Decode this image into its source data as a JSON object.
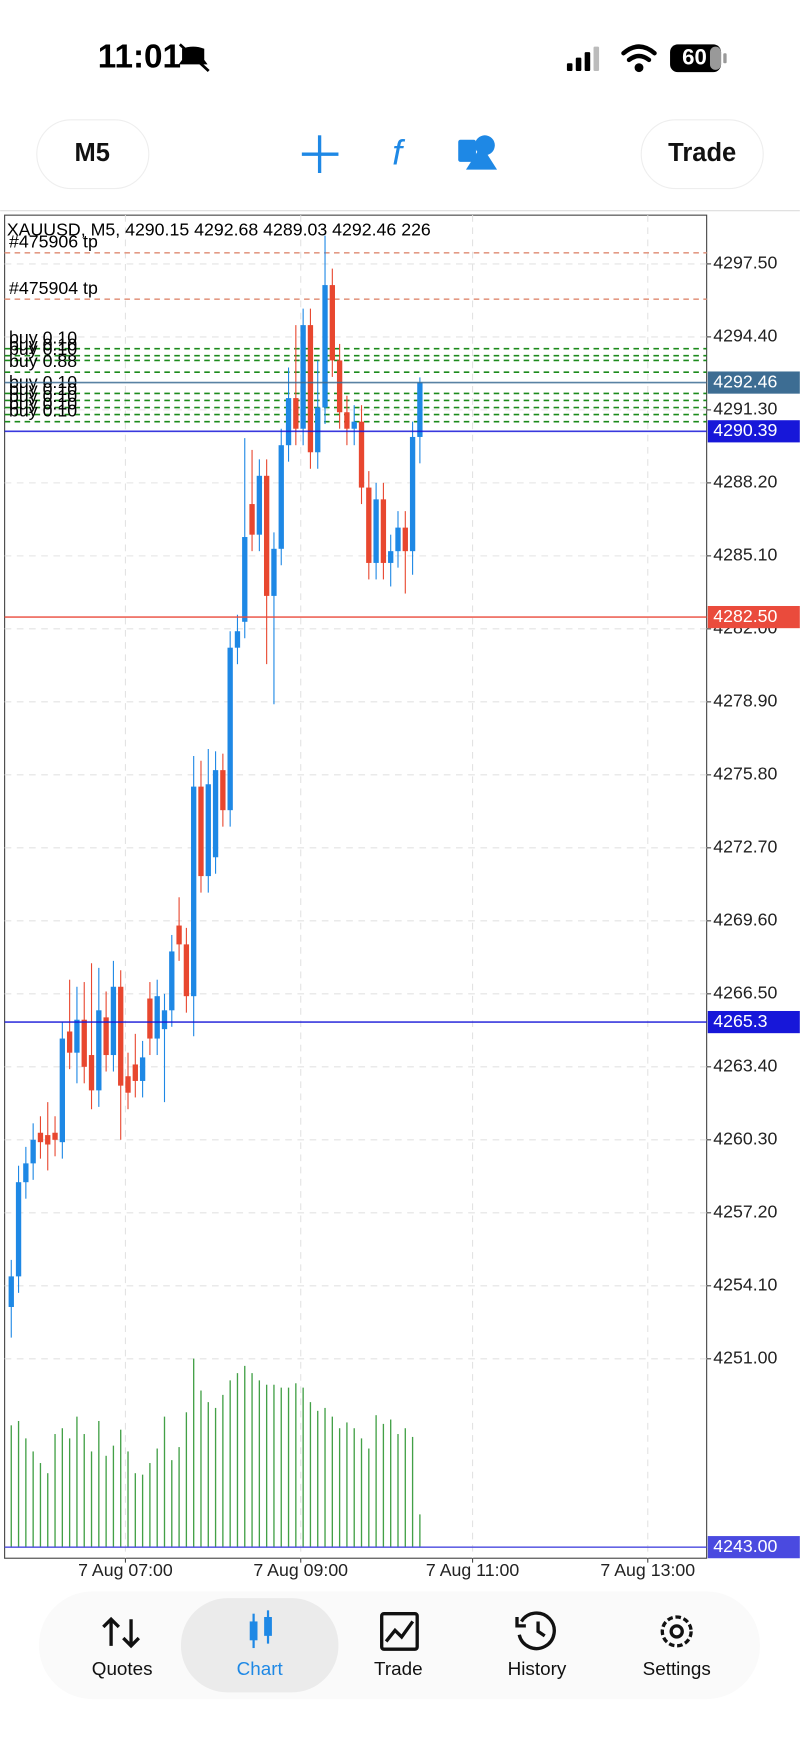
{
  "status_bar": {
    "time": "11:01",
    "battery": "60"
  },
  "toolbar": {
    "timeframe": "M5",
    "trade": "Trade"
  },
  "chart_data": {
    "type": "candlestick",
    "title": "XAUUSD, M5, 4290.15 4292.68 4289.03 4292.46 226",
    "categories": [
      null,
      null,
      null,
      null,
      null,
      null,
      null,
      null,
      null,
      null,
      null,
      null,
      null,
      null,
      null,
      null,
      null,
      null,
      null,
      null,
      null,
      null,
      null,
      null,
      null,
      null,
      null,
      null,
      null,
      null,
      null,
      null,
      null,
      null,
      null,
      null,
      null,
      null,
      null,
      null,
      null,
      null,
      null,
      null,
      null,
      null,
      null,
      null,
      null,
      null,
      null,
      null,
      null,
      null,
      null,
      null,
      null
    ],
    "open": [
      4253.2,
      4254.5,
      4258.5,
      4259.3,
      4260.6,
      4260.5,
      4260.6,
      4260.2,
      4264.9,
      4264.0,
      4265.4,
      4263.9,
      4262.4,
      4265.5,
      4263.9,
      4266.8,
      4263.0,
      4263.5,
      4262.8,
      4266.3,
      4264.6,
      4265.0,
      4265.8,
      4269.4,
      4268.6,
      4266.4,
      4275.3,
      4271.5,
      4272.3,
      4276.0,
      4274.3,
      4281.2,
      4282.3,
      4287.3,
      4286.0,
      4288.5,
      4283.4,
      4285.4,
      4289.8,
      4291.8,
      4290.5,
      4294.9,
      4289.5,
      4291.4,
      4296.6,
      4293.4,
      4291.2,
      4290.5,
      4290.8,
      4288.0,
      4284.8,
      4287.5,
      4284.8,
      4285.3,
      4286.3,
      4285.3,
      4290.15
    ],
    "high": [
      4255.2,
      4259.2,
      4260.0,
      4261.0,
      4261.3,
      4261.9,
      4261.3,
      4265.3,
      4267.1,
      4266.8,
      4267.0,
      4267.8,
      4267.6,
      4266.6,
      4267.9,
      4267.5,
      4264.0,
      4264.8,
      4264.5,
      4267.0,
      4267.1,
      4266.5,
      4269.0,
      4270.6,
      4269.3,
      4276.6,
      4276.4,
      4276.9,
      4276.8,
      4276.7,
      4281.9,
      4282.6,
      4290.1,
      4289.6,
      4289.2,
      4289.2,
      4286.1,
      4290.5,
      4293.1,
      4294.9,
      4295.6,
      4295.6,
      4293.4,
      4298.7,
      4297.3,
      4294.1,
      4291.9,
      4291.5,
      4291.5,
      4288.7,
      4288.2,
      4288.2,
      4286.0,
      4287.0,
      4287.0,
      4290.8,
      4292.68
    ],
    "low": [
      4251.9,
      4253.8,
      4257.8,
      4258.6,
      4259.5,
      4259.0,
      4259.6,
      4259.5,
      4263.3,
      4262.7,
      4262.7,
      4261.6,
      4261.7,
      4263.2,
      4263.2,
      4260.3,
      4261.6,
      4262.1,
      4262.1,
      4263.9,
      4263.9,
      4261.9,
      4265.1,
      4267.9,
      4265.7,
      4264.7,
      4270.8,
      4270.8,
      4271.6,
      4273.6,
      4273.6,
      4280.5,
      4281.6,
      4285.3,
      4285.3,
      4280.5,
      4278.8,
      4284.7,
      4289.1,
      4289.8,
      4289.8,
      4288.8,
      4288.8,
      4290.7,
      4292.7,
      4290.5,
      4289.8,
      4289.8,
      4287.3,
      4284.1,
      4284.1,
      4284.1,
      4283.8,
      4284.6,
      4283.5,
      4284.3,
      4289.03
    ],
    "close": [
      4254.5,
      4258.5,
      4259.3,
      4260.3,
      4260.2,
      4260.1,
      4260.3,
      4264.6,
      4264.0,
      4265.4,
      4263.4,
      4262.4,
      4265.8,
      4263.9,
      4266.8,
      4262.6,
      4262.3,
      4262.8,
      4263.8,
      4264.6,
      4266.4,
      4265.8,
      4268.3,
      4268.6,
      4266.4,
      4275.3,
      4271.5,
      4275.4,
      4276.0,
      4274.3,
      4281.2,
      4281.9,
      4285.9,
      4286.0,
      4288.5,
      4283.4,
      4285.4,
      4289.8,
      4291.8,
      4290.5,
      4294.9,
      4289.5,
      4291.4,
      4296.6,
      4293.4,
      4291.2,
      4290.5,
      4290.8,
      4288.0,
      4284.8,
      4287.5,
      4284.8,
      4285.3,
      4286.3,
      4285.3,
      4290.15,
      4292.46
    ],
    "volume": [
      840,
      870,
      750,
      660,
      580,
      510,
      780,
      820,
      750,
      900,
      780,
      660,
      870,
      630,
      700,
      810,
      660,
      510,
      500,
      580,
      680,
      900,
      600,
      690,
      930,
      1300,
      1080,
      1000,
      960,
      1050,
      1150,
      1200,
      1250,
      1200,
      1150,
      1120,
      1120,
      1100,
      1100,
      1130,
      1100,
      1000,
      940,
      960,
      900,
      820,
      860,
      820,
      750,
      680,
      910,
      850,
      880,
      780,
      820,
      760,
      226
    ],
    "bull_color": "#1e88e5",
    "bear_color": "#e8472f",
    "volume_color": "#43a047",
    "ylim": [
      4242.53,
      4299.57
    ],
    "yticks": [
      {
        "value": 4297.5,
        "label": "4297.50"
      },
      {
        "value": 4294.4,
        "label": "4294.40"
      },
      {
        "value": 4291.3,
        "label": "4291.30"
      },
      {
        "value": 4288.2,
        "label": "4288.20"
      },
      {
        "value": 4285.1,
        "label": "4285.10"
      },
      {
        "value": 4282,
        "label": "4282.00"
      },
      {
        "value": 4278.9,
        "label": "4278.90"
      },
      {
        "value": 4275.8,
        "label": "4275.80"
      },
      {
        "value": 4272.7,
        "label": "4272.70"
      },
      {
        "value": 4269.6,
        "label": "4269.60"
      },
      {
        "value": 4266.5,
        "label": "4266.50"
      },
      {
        "value": 4263.4,
        "label": "4263.40"
      },
      {
        "value": 4260.3,
        "label": "4260.30"
      },
      {
        "value": 4257.2,
        "label": "4257.20"
      },
      {
        "value": 4254.1,
        "label": "4254.10"
      },
      {
        "value": 4251,
        "label": "4251.00"
      }
    ],
    "xlim": [
      -0.91,
      95.3
    ],
    "xticks": [
      {
        "value": 15.65,
        "label": "7 Aug 07:00"
      },
      {
        "value": 39.67,
        "label": "7 Aug 09:00"
      },
      {
        "value": 63.22,
        "label": "7 Aug 11:00"
      },
      {
        "value": 87.23,
        "label": "7 Aug 13:00"
      }
    ],
    "grid": true,
    "levels": [
      {
        "value": 4292.46,
        "color": "#3d6d93"
      },
      {
        "value": 4290.39,
        "color": "#1717d9"
      },
      {
        "value": 4282.5,
        "label": "4282.50",
        "color": "#ea4b3c"
      },
      {
        "value": 4265.3,
        "color": "#1717d9"
      },
      {
        "value": 4243,
        "label": "4243.00",
        "color": "#4a4ae0"
      }
    ],
    "orders": [
      {
        "value": 4297.97,
        "label": "#475906 tp",
        "color": "#e39a85"
      },
      {
        "value": 4296.0,
        "label": "#475904 tp",
        "color": "#e39a85"
      },
      {
        "value": 4293.9,
        "label": "buy 0.10",
        "color": "#1b8a1b"
      },
      {
        "value": 4293.6,
        "label": "buy 0.10",
        "color": "#1b8a1b"
      },
      {
        "value": 4293.4,
        "label": "buy 0.10",
        "color": "#1b8a1b"
      },
      {
        "value": 4292.9,
        "label": "buy 0.88",
        "color": "#1b8a1b"
      },
      {
        "value": 4292.0,
        "label": "buy 0.10",
        "color": "#1b8a1b"
      },
      {
        "value": 4291.7,
        "label": "buy 0.10",
        "color": "#1b8a1b"
      },
      {
        "value": 4291.4,
        "label": "buy 0.10",
        "color": "#1b8a1b"
      },
      {
        "value": 4291.1,
        "label": "buy 0.10",
        "color": "#1b8a1b"
      },
      {
        "value": 4290.8,
        "label": "buy 0.10",
        "color": "#1b8a1b"
      }
    ]
  },
  "nav": {
    "items": [
      "Quotes",
      "Chart",
      "Trade",
      "History",
      "Settings"
    ],
    "active_index": 1
  }
}
